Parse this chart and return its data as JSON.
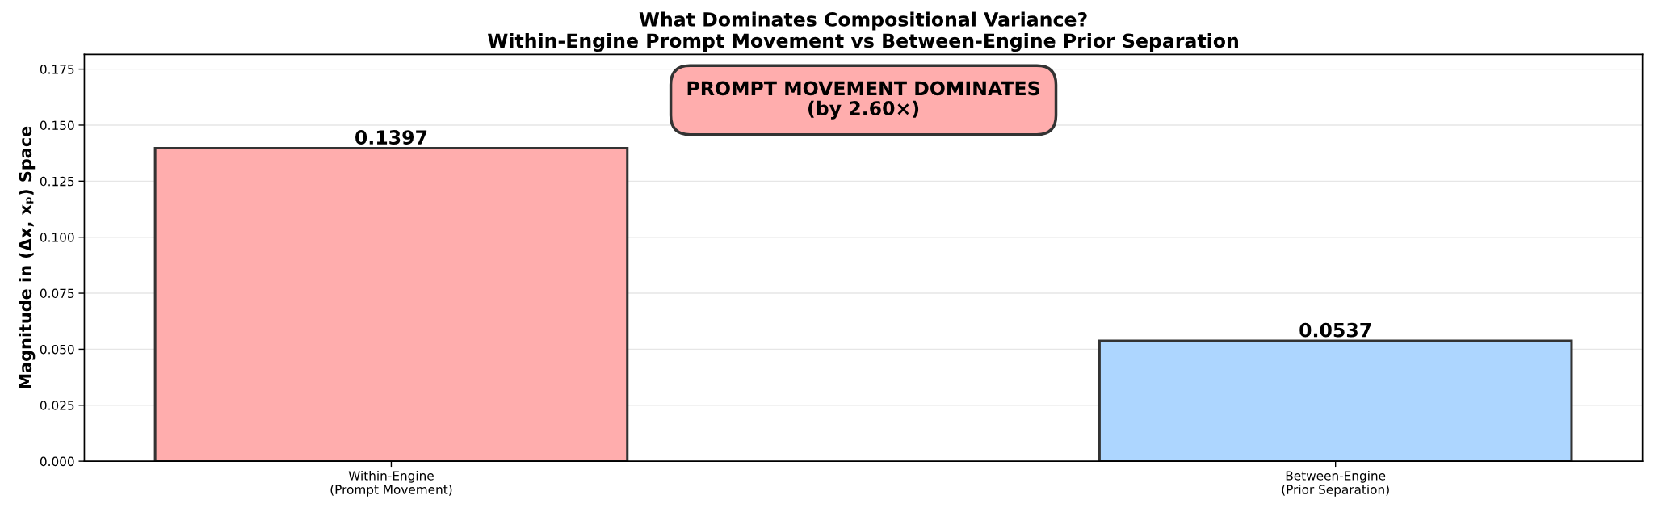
{
  "chart_data": {
    "type": "bar",
    "title": "What Dominates Compositional Variance?\nWithin-Engine Prompt Movement vs Between-Engine Prior Separation",
    "ylabel": "Magnitude in (Δx, xₚ) Space",
    "categories": [
      "Within-Engine\n(Prompt Movement)",
      "Between-Engine\n(Prior Separation)"
    ],
    "values": [
      0.1397,
      0.0537
    ],
    "colors": [
      "#ffadad",
      "#add6ff"
    ],
    "ylim": [
      0,
      0.1816
    ],
    "yticks": [
      {
        "value": 0,
        "label": "0.000"
      },
      {
        "value": 0.025,
        "label": "0.025"
      },
      {
        "value": 0.05,
        "label": "0.050"
      },
      {
        "value": 0.075,
        "label": "0.075"
      },
      {
        "value": 0.1,
        "label": "0.100"
      },
      {
        "value": 0.125,
        "label": "0.125"
      },
      {
        "value": 0.15,
        "label": "0.150"
      },
      {
        "value": 0.175,
        "label": "0.175"
      }
    ],
    "grid": "y",
    "data_labels": true,
    "annotations": [
      "PROMPT MOVEMENT DOMINATES\n(by 2.60×)"
    ]
  }
}
